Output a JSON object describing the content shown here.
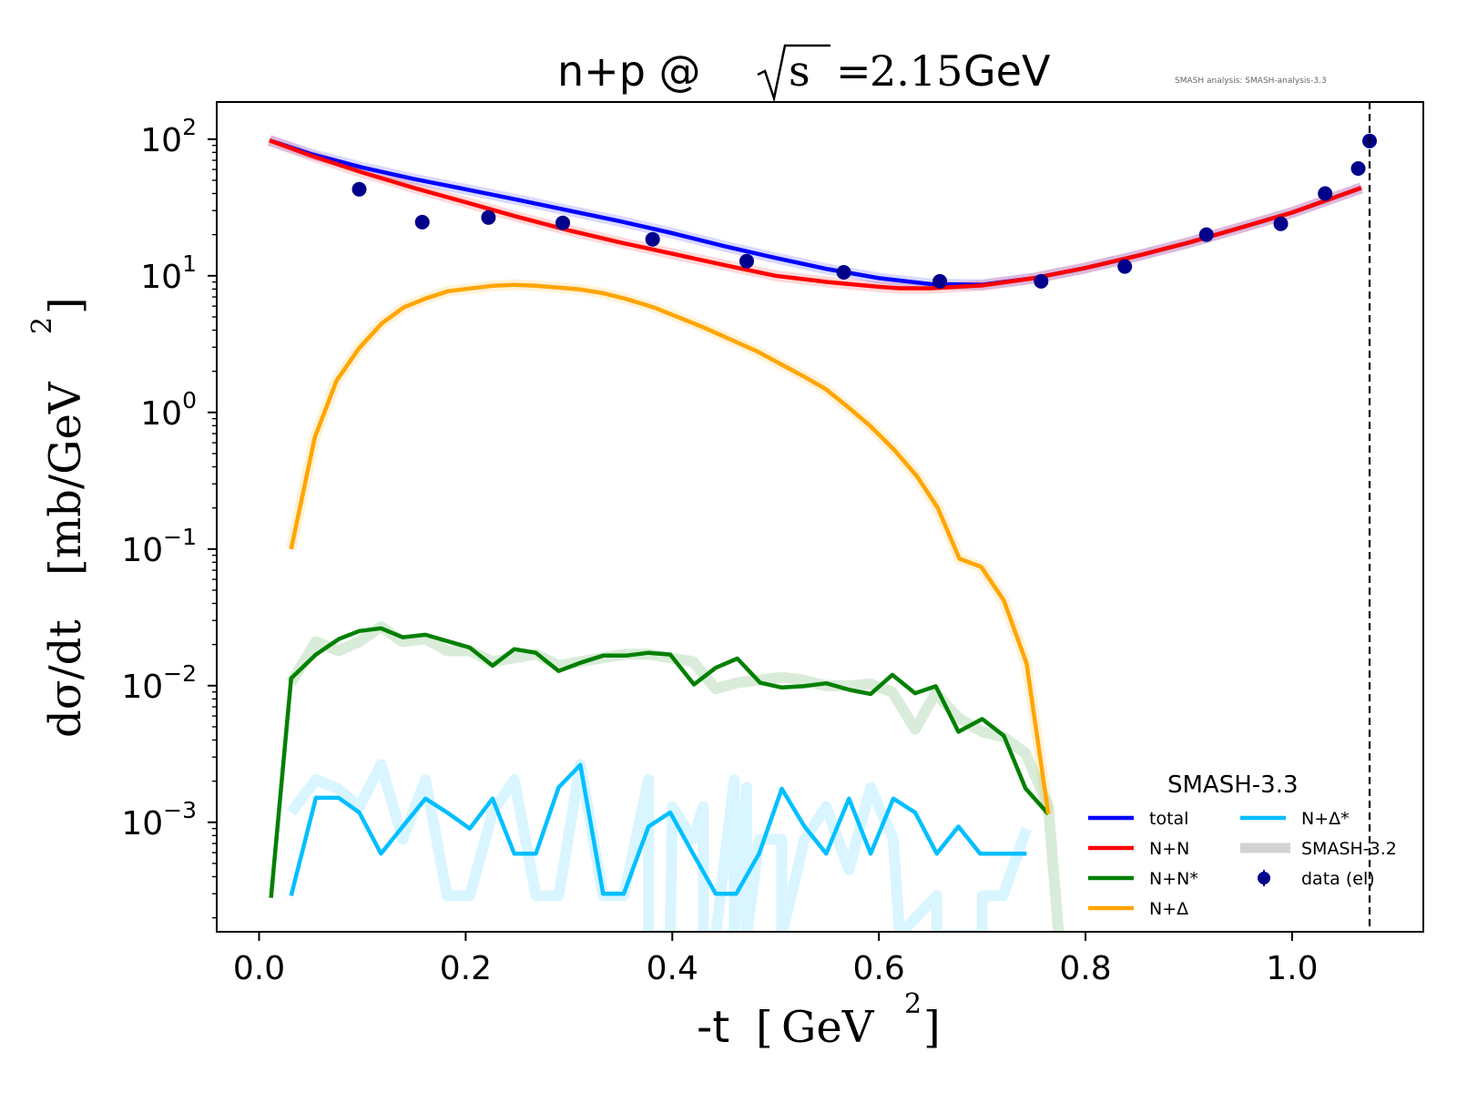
{
  "chart_data": {
    "type": "line",
    "title": "n+p @ √s = 2.15 GeV",
    "title_parts": {
      "prefix": "n+p @ ",
      "sqrt_arg": "s",
      "equals": "=",
      "value": "2.15",
      "unit": " GeV"
    },
    "watermark": "SMASH analysis: SMASH-analysis-3.3",
    "xlabel": "-t [GeV²]",
    "xlabel_parts": {
      "main": "-t ",
      "bracket_open": "[",
      "unit": "GeV",
      "sup": "2",
      "bracket_close": "]"
    },
    "ylabel": "dσ/dt [mb/GeV²]",
    "ylabel_parts": {
      "main": "dσ/dt ",
      "unit": "[mb/GeV",
      "sup": "2",
      "close": "]"
    },
    "xscale": "linear",
    "yscale": "log",
    "xlim": [
      -0.041,
      1.127
    ],
    "ylim": [
      0.000158,
      187
    ],
    "x_ticks": [
      {
        "value": 0.0,
        "label": "0.0"
      },
      {
        "value": 0.2,
        "label": "0.2"
      },
      {
        "value": 0.4,
        "label": "0.4"
      },
      {
        "value": 0.6,
        "label": "0.6"
      },
      {
        "value": 0.8,
        "label": "0.8"
      },
      {
        "value": 1.0,
        "label": "1.0"
      }
    ],
    "y_ticks": [
      {
        "value": 100,
        "base": "10",
        "exp": "2"
      },
      {
        "value": 10,
        "base": "10",
        "exp": "1"
      },
      {
        "value": 1,
        "base": "10",
        "exp": "0"
      },
      {
        "value": 0.1,
        "base": "10",
        "exp": "−1"
      },
      {
        "value": 0.01,
        "base": "10",
        "exp": "−2"
      },
      {
        "value": 0.001,
        "base": "10",
        "exp": "−3"
      }
    ],
    "vline": {
      "x": 1.075,
      "style": "dashed",
      "color": "#000000"
    },
    "grid": false,
    "legend": {
      "title": "SMASH-3.3",
      "placement": "lower-right",
      "entries": [
        {
          "label": "total",
          "color": "#0000ff",
          "kind": "line"
        },
        {
          "label": "N+N",
          "color": "#ff0000",
          "kind": "line"
        },
        {
          "label": "N+N*",
          "color": "#008000",
          "kind": "line"
        },
        {
          "label": "N+Δ",
          "color": "#ffa500",
          "kind": "line"
        },
        {
          "label": "N+Δ*",
          "color": "#00bfff",
          "kind": "line"
        },
        {
          "label": "SMASH-3.2",
          "color": "#d3d3d3",
          "kind": "band"
        },
        {
          "label": "data (el)",
          "color": "#00008b",
          "kind": "marker"
        }
      ]
    },
    "series": [
      {
        "name": "total",
        "color": "#0000ff",
        "x": [
          0.01,
          0.05,
          0.1,
          0.15,
          0.2,
          0.25,
          0.3,
          0.35,
          0.4,
          0.45,
          0.5,
          0.55,
          0.6,
          0.65,
          0.7,
          0.75,
          0.8,
          0.85,
          0.9,
          0.95,
          1.0,
          1.067
        ],
        "y": [
          98,
          78,
          62,
          51,
          43,
          36,
          30,
          25,
          20.5,
          16.5,
          13.5,
          11.2,
          9.6,
          8.7,
          8.6,
          9.6,
          11.4,
          14,
          17.5,
          22.5,
          29,
          44
        ]
      },
      {
        "name": "N+N",
        "color": "#ff0000",
        "x": [
          0.01,
          0.05,
          0.1,
          0.15,
          0.2,
          0.25,
          0.3,
          0.35,
          0.4,
          0.45,
          0.5,
          0.55,
          0.6,
          0.62,
          0.65,
          0.7,
          0.75,
          0.8,
          0.85,
          0.9,
          0.95,
          1.0,
          1.067
        ],
        "y": [
          98,
          76,
          57,
          44,
          34.5,
          27,
          21.5,
          17.5,
          14.5,
          12,
          10,
          9,
          8.3,
          8.1,
          8.1,
          8.5,
          9.6,
          11.4,
          14,
          17.5,
          22.5,
          29,
          44
        ]
      },
      {
        "name": "N+N*",
        "color": "#008000",
        "x": [
          0.0115,
          0.031,
          0.055,
          0.077,
          0.097,
          0.118,
          0.139,
          0.161,
          0.182,
          0.204,
          0.226,
          0.247,
          0.268,
          0.29,
          0.311,
          0.333,
          0.355,
          0.377,
          0.398,
          0.421,
          0.442,
          0.463,
          0.485,
          0.506,
          0.527,
          0.549,
          0.572,
          0.592,
          0.613,
          0.635,
          0.655,
          0.677,
          0.7,
          0.721,
          0.742,
          0.764
        ],
        "y": [
          0.00028,
          0.0113,
          0.0169,
          0.0219,
          0.0251,
          0.0263,
          0.0226,
          0.0236,
          0.0212,
          0.019,
          0.014,
          0.0185,
          0.0174,
          0.0128,
          0.0147,
          0.0166,
          0.0166,
          0.0174,
          0.0169,
          0.0102,
          0.0135,
          0.0158,
          0.0105,
          0.0097,
          0.0099,
          0.0104,
          0.0093,
          0.0087,
          0.012,
          0.0088,
          0.0099,
          0.0046,
          0.0057,
          0.0043,
          0.00177,
          0.00115
        ]
      },
      {
        "name": "N+Δ",
        "color": "#ffa500",
        "x": [
          0.031,
          0.054,
          0.075,
          0.097,
          0.119,
          0.14,
          0.161,
          0.183,
          0.204,
          0.226,
          0.247,
          0.268,
          0.29,
          0.311,
          0.333,
          0.354,
          0.377,
          0.384,
          0.43,
          0.482,
          0.527,
          0.548,
          0.571,
          0.592,
          0.615,
          0.637,
          0.657,
          0.678,
          0.699,
          0.721,
          0.743,
          0.764
        ],
        "y": [
          0.1,
          0.66,
          1.71,
          2.96,
          4.5,
          5.87,
          6.81,
          7.71,
          8.07,
          8.45,
          8.58,
          8.45,
          8.2,
          7.94,
          7.46,
          6.81,
          6.03,
          5.8,
          4.2,
          2.8,
          1.84,
          1.49,
          1.08,
          0.79,
          0.53,
          0.34,
          0.2,
          0.085,
          0.074,
          0.042,
          0.0145,
          0.00115
        ]
      },
      {
        "name": "N+Δ*",
        "color": "#00bfff",
        "x": [
          0.031,
          0.055,
          0.077,
          0.097,
          0.118,
          0.139,
          0.161,
          0.182,
          0.204,
          0.226,
          0.247,
          0.268,
          0.29,
          0.311,
          0.333,
          0.353,
          0.377,
          0.398,
          0.42,
          0.442,
          0.462,
          0.484,
          0.506,
          0.528,
          0.549,
          0.571,
          0.592,
          0.614,
          0.635,
          0.656,
          0.677,
          0.698,
          0.72,
          0.743
        ],
        "y": [
          0.00029,
          0.00151,
          0.00151,
          0.00118,
          0.00059,
          0.00093,
          0.00149,
          0.00118,
          0.0009,
          0.00149,
          0.00059,
          0.00059,
          0.0018,
          0.00263,
          0.0003,
          0.0003,
          0.00093,
          0.00118,
          0.00059,
          0.0003,
          0.0003,
          0.00059,
          0.00176,
          0.00093,
          0.00059,
          0.00149,
          0.00059,
          0.00149,
          0.00118,
          0.00059,
          0.00093,
          0.00059,
          0.00059,
          0.00059
        ]
      }
    ],
    "reference_series": [
      {
        "name": "total (SMASH-3.2)",
        "color": "#0000ff",
        "same_as": "total"
      },
      {
        "name": "N+N (SMASH-3.2)",
        "color": "#ff0000",
        "same_as": "N+N"
      },
      {
        "name": "N+Δ (SMASH-3.2)",
        "color": "#ffa500",
        "same_as": "N+Δ"
      },
      {
        "name": "N+N* (SMASH-3.2)",
        "color": "#008000",
        "x": [
          0.031,
          0.055,
          0.077,
          0.097,
          0.118,
          0.139,
          0.161,
          0.182,
          0.204,
          0.226,
          0.247,
          0.268,
          0.29,
          0.311,
          0.333,
          0.355,
          0.377,
          0.398,
          0.42,
          0.442,
          0.463,
          0.485,
          0.506,
          0.527,
          0.549,
          0.572,
          0.592,
          0.613,
          0.635,
          0.655,
          0.677,
          0.7,
          0.721,
          0.742,
          0.764,
          0.774
        ],
        "y": [
          0.0105,
          0.021,
          0.018,
          0.021,
          0.027,
          0.021,
          0.022,
          0.018,
          0.018,
          0.015,
          0.016,
          0.017,
          0.014,
          0.015,
          0.016,
          0.017,
          0.017,
          0.016,
          0.015,
          0.0095,
          0.0105,
          0.011,
          0.0115,
          0.011,
          0.01,
          0.01,
          0.0103,
          0.009,
          0.0048,
          0.0088,
          0.0058,
          0.0046,
          0.0042,
          0.0032,
          0.0013,
          0.00015
        ]
      },
      {
        "name": "N+Δ* (SMASH-3.2)",
        "color": "#00bfff",
        "x": [
          0.031,
          0.055,
          0.077,
          0.097,
          0.118,
          0.139,
          0.161,
          0.182,
          0.204,
          0.226,
          0.247,
          0.268,
          0.29,
          0.311,
          0.333,
          0.353,
          0.377,
          0.377,
          0.398,
          0.4,
          0.42,
          0.43,
          0.43,
          0.442,
          0.46,
          0.46,
          0.472,
          0.472,
          0.484,
          0.506,
          0.506,
          0.528,
          0.549,
          0.571,
          0.592,
          0.614,
          0.62,
          0.62,
          0.656,
          0.656,
          0.7,
          0.7,
          0.72,
          0.743
        ],
        "y": [
          0.00118,
          0.00205,
          0.00175,
          0.0013,
          0.00265,
          0.00075,
          0.00205,
          0.00029,
          0.00029,
          0.00118,
          0.00205,
          0.00029,
          0.00029,
          0.00265,
          0.00029,
          0.00029,
          0.00205,
          0.00015,
          0.00015,
          0.0013,
          0.00075,
          0.0013,
          0.00015,
          0.00015,
          0.00205,
          0.00015,
          0.0018,
          0.00015,
          0.00075,
          0.00075,
          0.00015,
          0.00075,
          0.0013,
          0.00045,
          0.0018,
          0.00075,
          0.00015,
          0.00015,
          0.00029,
          0.00015,
          0.00015,
          0.00029,
          0.00029,
          0.0009
        ]
      }
    ],
    "data_points": {
      "name": "data (el)",
      "color": "#00008b",
      "x": [
        0.097,
        0.158,
        0.222,
        0.294,
        0.381,
        0.472,
        0.566,
        0.659,
        0.757,
        0.838,
        0.917,
        0.989,
        1.032,
        1.064,
        1.075
      ],
      "y": [
        43,
        24.7,
        26.7,
        24.4,
        18.5,
        12.8,
        10.6,
        9.1,
        9.1,
        11.7,
        20,
        24,
        40,
        61,
        97
      ]
    }
  }
}
